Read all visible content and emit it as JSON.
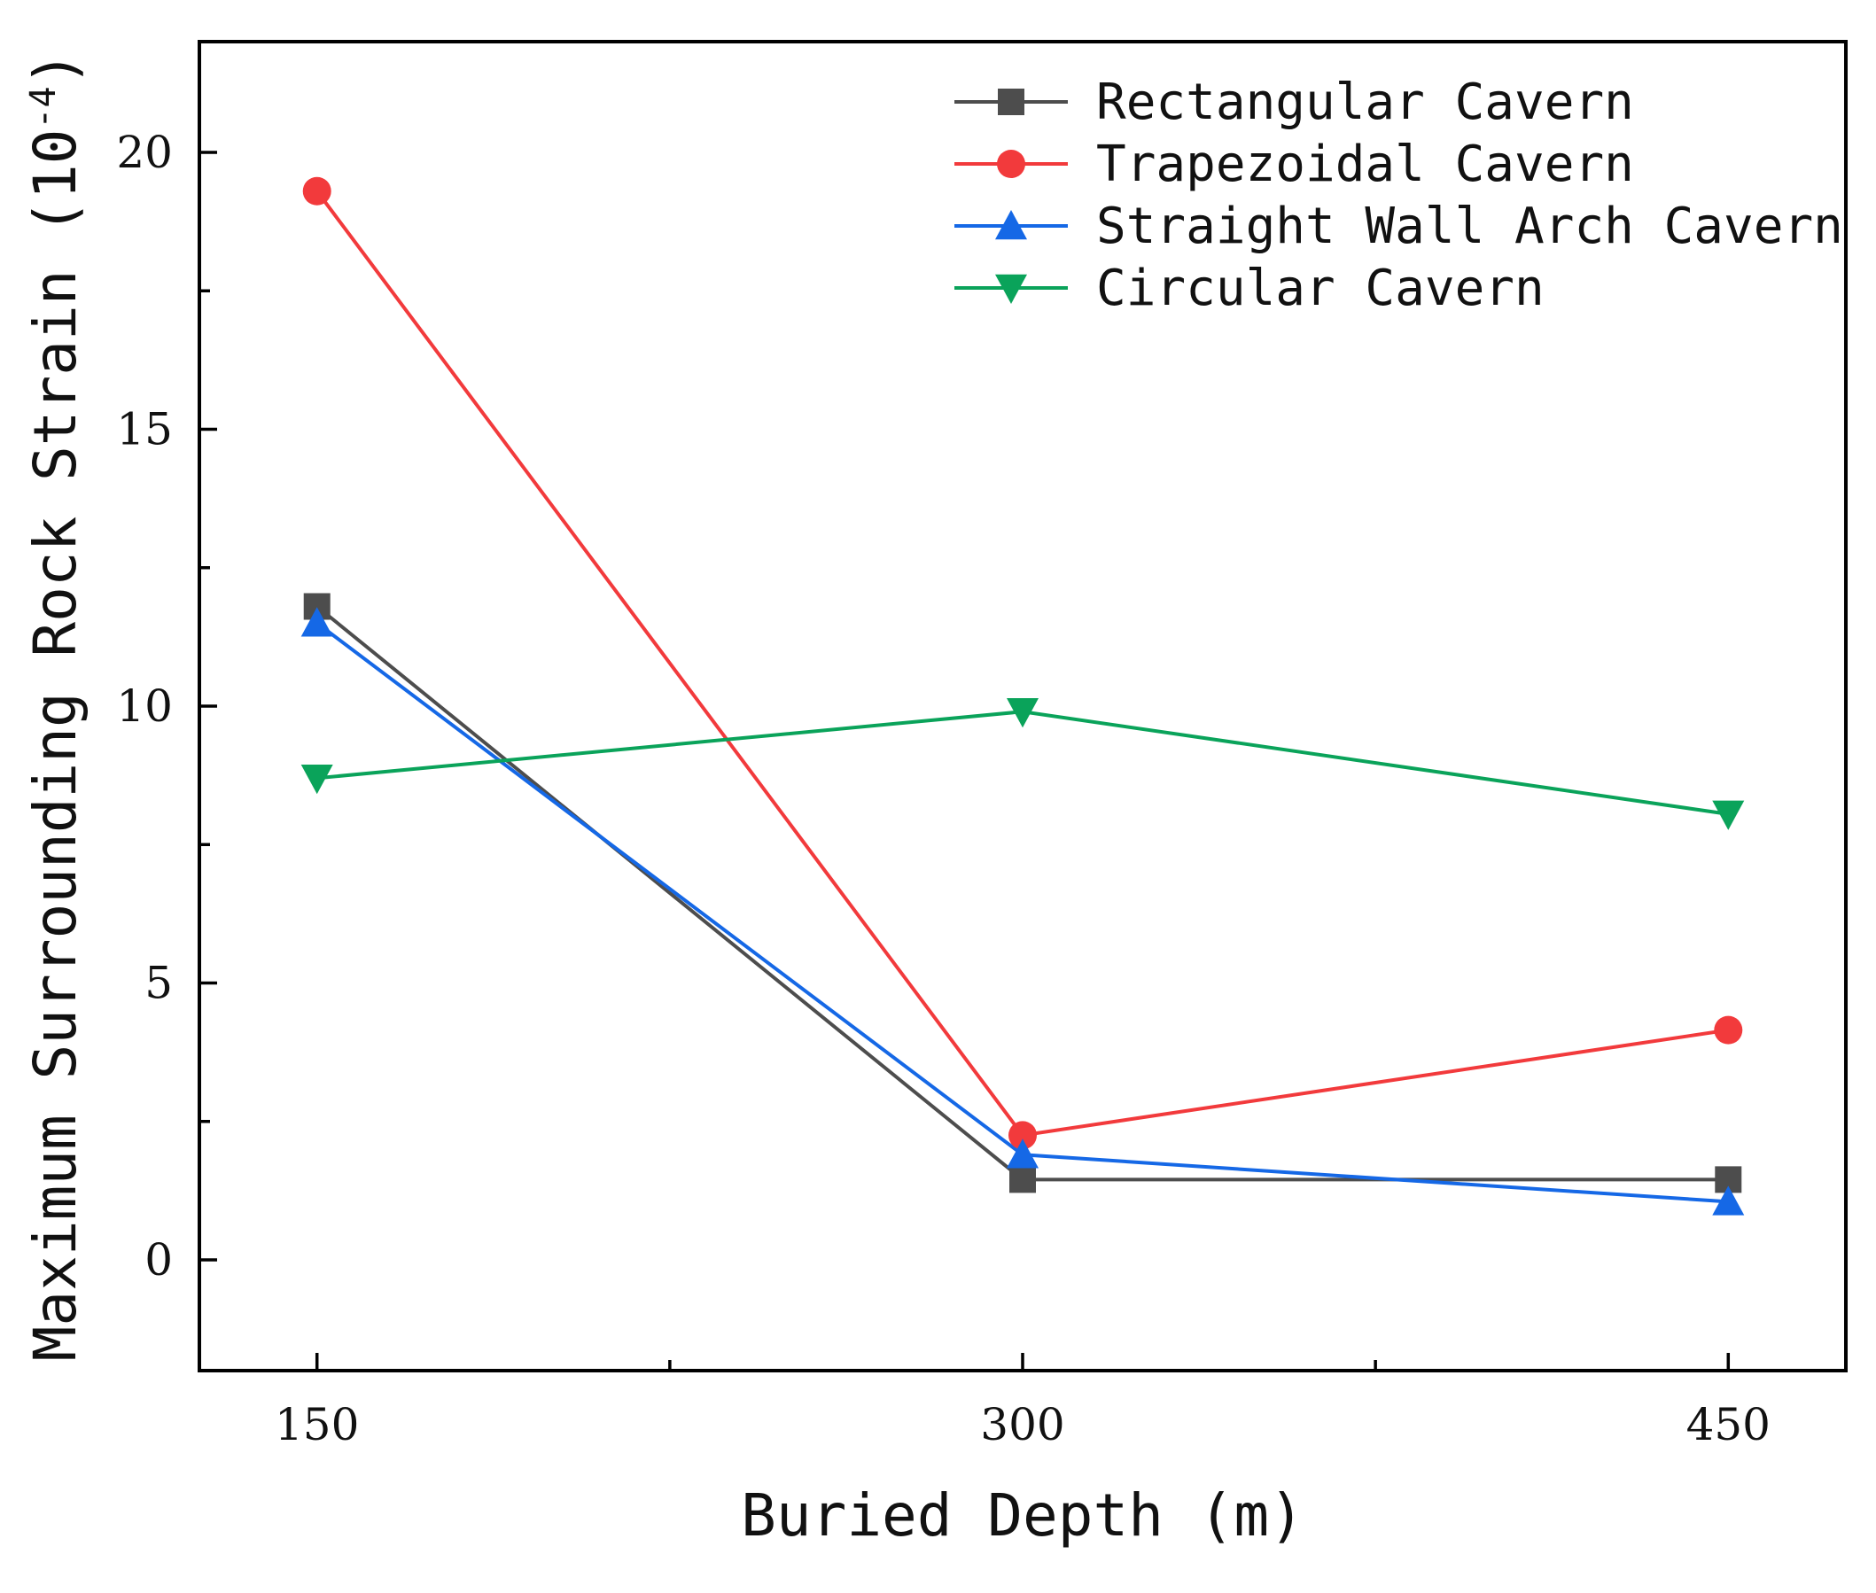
{
  "chart_data": {
    "type": "line",
    "x": [
      150,
      300,
      450
    ],
    "series": [
      {
        "name": "Rectangular Cavern",
        "values": [
          11.8,
          1.45,
          1.45
        ],
        "color": "#4d4d4d",
        "marker": "square"
      },
      {
        "name": "Trapezoidal Cavern",
        "values": [
          19.3,
          2.25,
          4.15
        ],
        "color": "#f23a3c",
        "marker": "circle"
      },
      {
        "name": "Straight Wall Arch Cavern",
        "values": [
          11.5,
          1.9,
          1.05
        ],
        "color": "#1568e6",
        "marker": "triangle-up"
      },
      {
        "name": "Circular Cavern",
        "values": [
          8.7,
          9.9,
          8.05
        ],
        "color": "#0aa35a",
        "marker": "triangle-down"
      }
    ],
    "xlabel": "Buried Depth (m)",
    "ylabel": {
      "main": "Maximum Surrounding Rock Strain (10",
      "exponent": "-4",
      "close": ")"
    },
    "xlim": [
      125,
      475
    ],
    "ylim": [
      -2,
      22
    ],
    "x_major_ticks": [
      150,
      300,
      450
    ],
    "x_tick_labels": [
      "150",
      "300",
      "450"
    ],
    "x_minor_ticks": [
      225,
      375
    ],
    "y_major_ticks": [
      0,
      5,
      10,
      15,
      20
    ],
    "y_tick_labels": [
      "0",
      "5",
      "10",
      "15",
      "20"
    ],
    "y_minor_ticks": [
      2.5,
      7.5,
      12.5,
      17.5
    ],
    "legend_position": "top-right",
    "grid": false
  }
}
